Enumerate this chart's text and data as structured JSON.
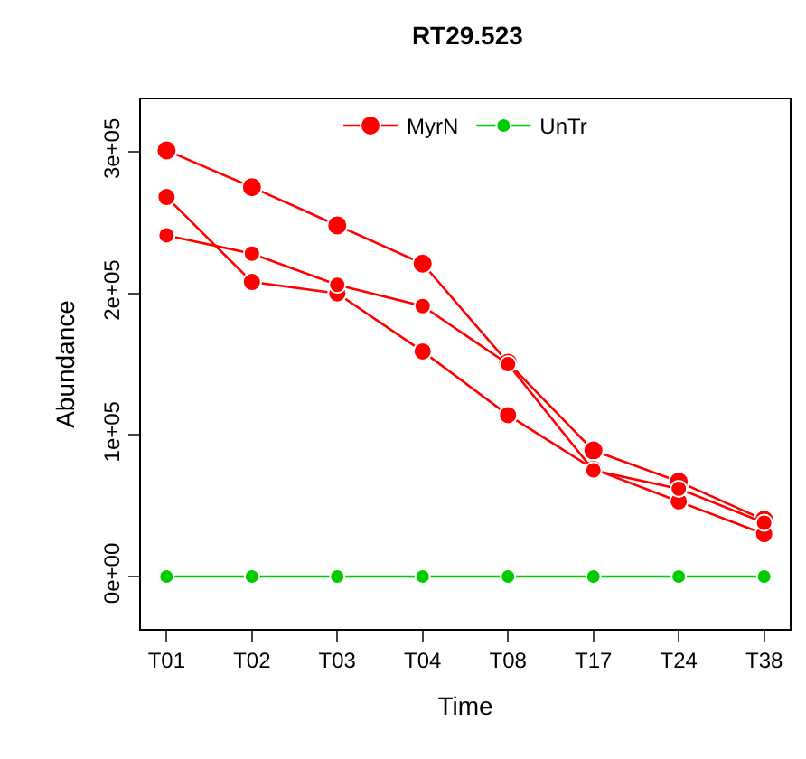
{
  "chart_data": {
    "type": "line",
    "title": "RT29.523",
    "xlabel": "Time",
    "ylabel": "Abundance",
    "categories": [
      "T01",
      "T02",
      "T03",
      "T04",
      "T08",
      "T17",
      "T24",
      "T38"
    ],
    "series": [
      {
        "name": "MyrN",
        "color": "#ff0000",
        "values": [
          301000,
          275000,
          248000,
          221000,
          151000,
          89000,
          67000,
          40000
        ]
      },
      {
        "color": "#ff0000",
        "values": [
          268000,
          208000,
          200000,
          159000,
          114000,
          76000,
          53000,
          30000
        ]
      },
      {
        "color": "#ff0000",
        "values": [
          241000,
          228000,
          206000,
          191000,
          150000,
          75000,
          62000,
          38000
        ]
      },
      {
        "name": "UnTr",
        "color": "#00cc00",
        "values": [
          0,
          0,
          0,
          0,
          0,
          0,
          0,
          0
        ]
      }
    ],
    "ylim": [
      -37000,
      337000
    ],
    "yticks": [
      {
        "value": 0,
        "label": "0e+00"
      },
      {
        "value": 100000,
        "label": "1e+05"
      },
      {
        "value": 200000,
        "label": "2e+05"
      },
      {
        "value": 300000,
        "label": "3e+05"
      }
    ],
    "grid": false,
    "legend": "top",
    "marker": "circle",
    "line_style": "solid"
  }
}
